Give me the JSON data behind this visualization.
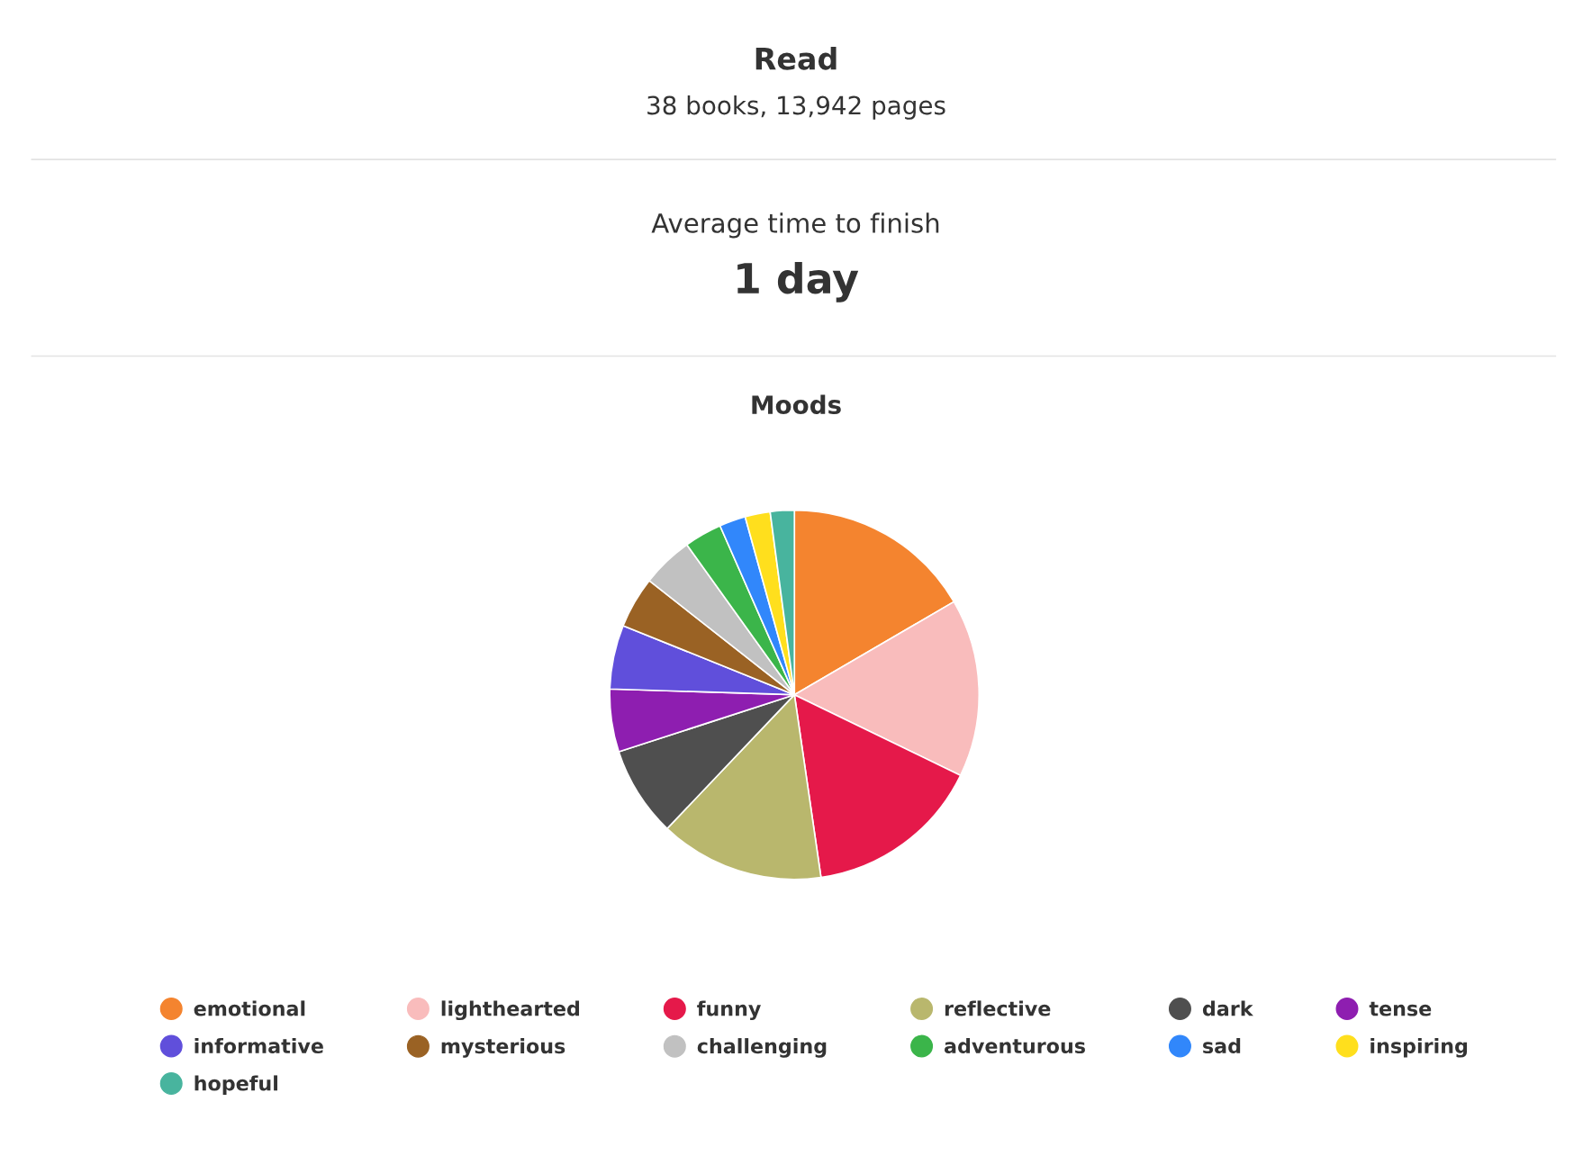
{
  "chart_data": {
    "type": "pie",
    "title": "Moods",
    "annotations": [
      "Read",
      "38 books, 13,942 pages",
      "Average time to finish",
      "1 day"
    ],
    "categories": [
      "emotional",
      "lighthearted",
      "funny",
      "reflective",
      "dark",
      "tense",
      "informative",
      "mysterious",
      "challenging",
      "adventurous",
      "sad",
      "inspiring",
      "hopeful"
    ],
    "values": [
      16.6,
      15.6,
      15.5,
      14.4,
      7.9,
      5.5,
      5.6,
      4.5,
      4.5,
      3.3,
      2.3,
      2.2,
      2.1
    ],
    "colors": [
      "#f4842f",
      "#f9bcbc",
      "#e5194a",
      "#b9b76d",
      "#4f4f4f",
      "#8e1eb0",
      "#604fdb",
      "#9a6224",
      "#c1c1c1",
      "#3bb54a",
      "#3187fb",
      "#ffdf1d",
      "#48b49e"
    ],
    "legend": "bottom"
  }
}
